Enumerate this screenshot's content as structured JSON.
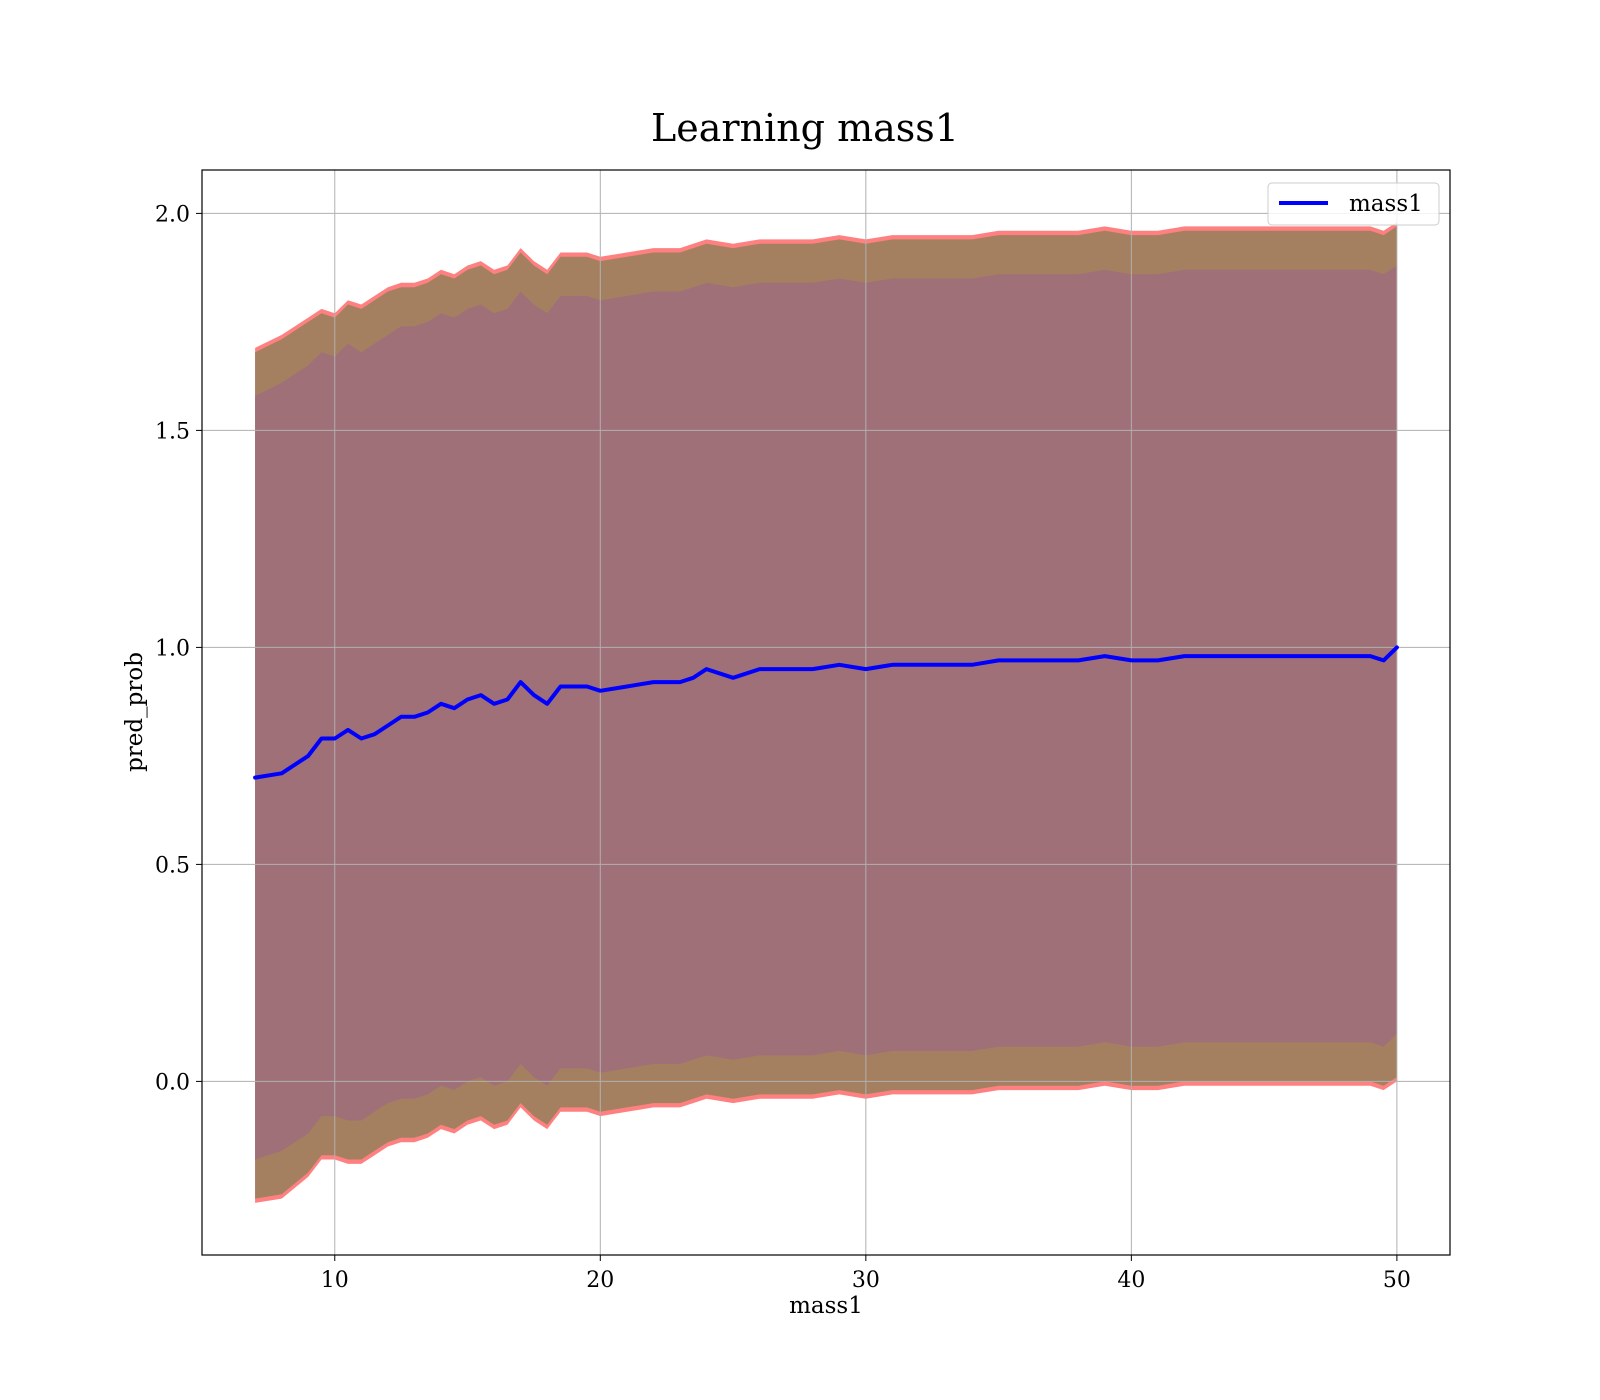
{
  "chart_data": {
    "type": "line",
    "title": "Learning mass1",
    "xlabel": "mass1",
    "ylabel": "pred_prob",
    "xlim": [
      5,
      52
    ],
    "ylim": [
      -0.4,
      2.1
    ],
    "xticks": [
      10,
      20,
      30,
      40,
      50
    ],
    "yticks": [
      0.0,
      0.5,
      1.0,
      1.5,
      2.0
    ],
    "xtick_labels": [
      "10",
      "20",
      "30",
      "40",
      "50"
    ],
    "ytick_labels": [
      "0.0",
      "0.5",
      "1.0",
      "1.5",
      "2.0"
    ],
    "grid": true,
    "legend": {
      "position": "top-right",
      "entries": [
        "mass1"
      ]
    },
    "x": [
      7,
      8,
      9,
      9.5,
      10,
      10.5,
      11,
      11.5,
      12,
      12.5,
      13,
      13.5,
      14,
      14.5,
      15,
      15.5,
      16,
      16.5,
      17,
      17.5,
      18,
      18.5,
      19,
      19.5,
      20,
      21,
      22,
      23,
      23.5,
      24,
      25,
      26,
      27,
      28,
      29,
      30,
      31,
      32,
      33,
      34,
      35,
      36,
      37,
      38,
      39,
      40,
      41,
      42,
      43,
      44,
      45,
      46,
      47,
      48,
      49,
      49.5,
      50
    ],
    "series": [
      {
        "name": "mass1",
        "color": "#0000ff",
        "values": [
          0.7,
          0.71,
          0.75,
          0.79,
          0.79,
          0.81,
          0.79,
          0.8,
          0.82,
          0.84,
          0.84,
          0.85,
          0.87,
          0.86,
          0.88,
          0.89,
          0.87,
          0.88,
          0.92,
          0.89,
          0.87,
          0.91,
          0.91,
          0.91,
          0.9,
          0.91,
          0.92,
          0.92,
          0.93,
          0.95,
          0.93,
          0.95,
          0.95,
          0.95,
          0.96,
          0.95,
          0.96,
          0.96,
          0.96,
          0.96,
          0.97,
          0.97,
          0.97,
          0.97,
          0.98,
          0.97,
          0.97,
          0.98,
          0.98,
          0.98,
          0.98,
          0.98,
          0.98,
          0.98,
          0.98,
          0.97,
          1.0
        ]
      }
    ],
    "bands": [
      {
        "kind": "outer",
        "fill": "#ff8080",
        "upper": [
          1.69,
          1.72,
          1.76,
          1.78,
          1.77,
          1.8,
          1.79,
          1.81,
          1.83,
          1.84,
          1.84,
          1.85,
          1.87,
          1.86,
          1.88,
          1.89,
          1.87,
          1.88,
          1.92,
          1.89,
          1.87,
          1.91,
          1.91,
          1.91,
          1.9,
          1.91,
          1.92,
          1.92,
          1.93,
          1.94,
          1.93,
          1.94,
          1.94,
          1.94,
          1.95,
          1.94,
          1.95,
          1.95,
          1.95,
          1.95,
          1.96,
          1.96,
          1.96,
          1.96,
          1.97,
          1.96,
          1.96,
          1.97,
          1.97,
          1.97,
          1.97,
          1.97,
          1.97,
          1.97,
          1.97,
          1.96,
          1.98
        ],
        "lower": [
          -0.28,
          -0.27,
          -0.22,
          -0.18,
          -0.18,
          -0.19,
          -0.19,
          -0.17,
          -0.15,
          -0.14,
          -0.14,
          -0.13,
          -0.11,
          -0.12,
          -0.1,
          -0.09,
          -0.11,
          -0.1,
          -0.06,
          -0.09,
          -0.11,
          -0.07,
          -0.07,
          -0.07,
          -0.08,
          -0.07,
          -0.06,
          -0.06,
          -0.05,
          -0.04,
          -0.05,
          -0.04,
          -0.04,
          -0.04,
          -0.03,
          -0.04,
          -0.03,
          -0.03,
          -0.03,
          -0.03,
          -0.02,
          -0.02,
          -0.02,
          -0.02,
          -0.01,
          -0.02,
          -0.02,
          -0.01,
          -0.01,
          -0.01,
          -0.01,
          -0.01,
          -0.01,
          -0.01,
          -0.01,
          -0.02,
          0.0
        ]
      },
      {
        "kind": "middle",
        "fill": "#a58060",
        "upper": [
          1.68,
          1.71,
          1.75,
          1.77,
          1.76,
          1.79,
          1.78,
          1.8,
          1.82,
          1.83,
          1.83,
          1.84,
          1.86,
          1.85,
          1.87,
          1.88,
          1.86,
          1.87,
          1.91,
          1.88,
          1.86,
          1.9,
          1.9,
          1.9,
          1.89,
          1.9,
          1.91,
          1.91,
          1.92,
          1.93,
          1.92,
          1.93,
          1.93,
          1.93,
          1.94,
          1.93,
          1.94,
          1.94,
          1.94,
          1.94,
          1.95,
          1.95,
          1.95,
          1.95,
          1.96,
          1.95,
          1.95,
          1.96,
          1.96,
          1.96,
          1.96,
          1.96,
          1.96,
          1.96,
          1.96,
          1.95,
          1.97
        ],
        "lower": [
          -0.27,
          -0.26,
          -0.21,
          -0.17,
          -0.17,
          -0.18,
          -0.18,
          -0.16,
          -0.14,
          -0.13,
          -0.13,
          -0.12,
          -0.1,
          -0.11,
          -0.09,
          -0.08,
          -0.1,
          -0.09,
          -0.05,
          -0.08,
          -0.1,
          -0.06,
          -0.06,
          -0.06,
          -0.07,
          -0.06,
          -0.05,
          -0.05,
          -0.04,
          -0.03,
          -0.04,
          -0.03,
          -0.03,
          -0.03,
          -0.02,
          -0.03,
          -0.02,
          -0.02,
          -0.02,
          -0.02,
          -0.01,
          -0.01,
          -0.01,
          -0.01,
          0.0,
          -0.01,
          -0.01,
          0.0,
          0.0,
          0.0,
          0.0,
          0.0,
          0.0,
          0.0,
          0.0,
          -0.01,
          0.01
        ]
      },
      {
        "kind": "inner",
        "fill": "#a07078",
        "upper": [
          1.58,
          1.61,
          1.65,
          1.68,
          1.67,
          1.7,
          1.68,
          1.7,
          1.72,
          1.74,
          1.74,
          1.75,
          1.77,
          1.76,
          1.78,
          1.79,
          1.77,
          1.78,
          1.82,
          1.79,
          1.77,
          1.81,
          1.81,
          1.81,
          1.8,
          1.81,
          1.82,
          1.82,
          1.83,
          1.84,
          1.83,
          1.84,
          1.84,
          1.84,
          1.85,
          1.84,
          1.85,
          1.85,
          1.85,
          1.85,
          1.86,
          1.86,
          1.86,
          1.86,
          1.87,
          1.86,
          1.86,
          1.87,
          1.87,
          1.87,
          1.87,
          1.87,
          1.87,
          1.87,
          1.87,
          1.86,
          1.88
        ],
        "lower": [
          -0.18,
          -0.16,
          -0.12,
          -0.08,
          -0.08,
          -0.09,
          -0.09,
          -0.07,
          -0.05,
          -0.04,
          -0.04,
          -0.03,
          -0.01,
          -0.02,
          0.0,
          0.01,
          -0.01,
          0.0,
          0.04,
          0.01,
          -0.01,
          0.03,
          0.03,
          0.03,
          0.02,
          0.03,
          0.04,
          0.04,
          0.05,
          0.06,
          0.05,
          0.06,
          0.06,
          0.06,
          0.07,
          0.06,
          0.07,
          0.07,
          0.07,
          0.07,
          0.08,
          0.08,
          0.08,
          0.08,
          0.09,
          0.08,
          0.08,
          0.09,
          0.09,
          0.09,
          0.09,
          0.09,
          0.09,
          0.09,
          0.09,
          0.08,
          0.11
        ]
      }
    ]
  }
}
